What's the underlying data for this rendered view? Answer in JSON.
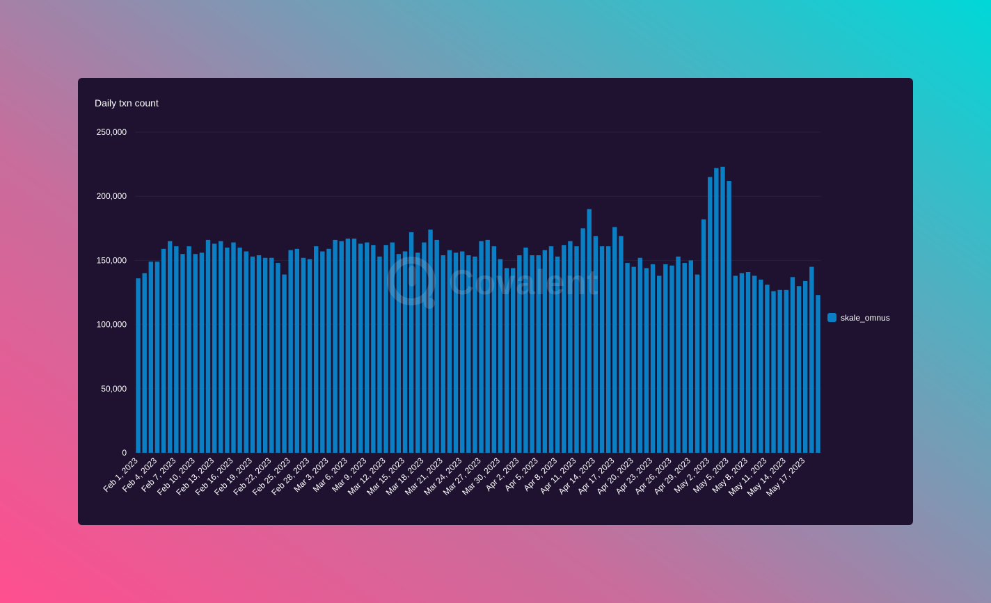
{
  "colors": {
    "bar": "#0a7fc4",
    "card_bg": "#1e1230",
    "text": "#ffffff",
    "grid": "#2a1f3c"
  },
  "watermark": {
    "text": "Covalent",
    "icon": "covalent-logo-icon"
  },
  "chart_data": {
    "type": "bar",
    "title": "Daily txn count",
    "xlabel": "",
    "ylabel": "",
    "ylim": [
      0,
      250000
    ],
    "yticks": [
      0,
      50000,
      100000,
      150000,
      200000,
      250000
    ],
    "ytick_labels": [
      "0",
      "50,000",
      "100,000",
      "150,000",
      "200,000",
      "250,000"
    ],
    "legend_position": "right",
    "grid": false,
    "categories": [
      "Feb 1, 2023",
      "Feb 2, 2023",
      "Feb 3, 2023",
      "Feb 4, 2023",
      "Feb 5, 2023",
      "Feb 6, 2023",
      "Feb 7, 2023",
      "Feb 8, 2023",
      "Feb 9, 2023",
      "Feb 10, 2023",
      "Feb 11, 2023",
      "Feb 12, 2023",
      "Feb 13, 2023",
      "Feb 14, 2023",
      "Feb 15, 2023",
      "Feb 16, 2023",
      "Feb 17, 2023",
      "Feb 18, 2023",
      "Feb 19, 2023",
      "Feb 20, 2023",
      "Feb 21, 2023",
      "Feb 22, 2023",
      "Feb 23, 2023",
      "Feb 24, 2023",
      "Feb 25, 2023",
      "Feb 26, 2023",
      "Feb 27, 2023",
      "Feb 28, 2023",
      "Mar 1, 2023",
      "Mar 2, 2023",
      "Mar 3, 2023",
      "Mar 4, 2023",
      "Mar 5, 2023",
      "Mar 6, 2023",
      "Mar 7, 2023",
      "Mar 8, 2023",
      "Mar 9, 2023",
      "Mar 10, 2023",
      "Mar 11, 2023",
      "Mar 12, 2023",
      "Mar 13, 2023",
      "Mar 14, 2023",
      "Mar 15, 2023",
      "Mar 16, 2023",
      "Mar 17, 2023",
      "Mar 18, 2023",
      "Mar 19, 2023",
      "Mar 20, 2023",
      "Mar 21, 2023",
      "Mar 22, 2023",
      "Mar 23, 2023",
      "Mar 24, 2023",
      "Mar 25, 2023",
      "Mar 26, 2023",
      "Mar 27, 2023",
      "Mar 28, 2023",
      "Mar 29, 2023",
      "Mar 30, 2023",
      "Mar 31, 2023",
      "Apr 1, 2023",
      "Apr 2, 2023",
      "Apr 3, 2023",
      "Apr 4, 2023",
      "Apr 5, 2023",
      "Apr 6, 2023",
      "Apr 7, 2023",
      "Apr 8, 2023",
      "Apr 9, 2023",
      "Apr 10, 2023",
      "Apr 11, 2023",
      "Apr 12, 2023",
      "Apr 13, 2023",
      "Apr 14, 2023",
      "Apr 15, 2023",
      "Apr 16, 2023",
      "Apr 17, 2023",
      "Apr 18, 2023",
      "Apr 19, 2023",
      "Apr 20, 2023",
      "Apr 21, 2023",
      "Apr 22, 2023",
      "Apr 23, 2023",
      "Apr 24, 2023",
      "Apr 25, 2023",
      "Apr 26, 2023",
      "Apr 27, 2023",
      "Apr 28, 2023",
      "Apr 29, 2023",
      "Apr 30, 2023",
      "May 1, 2023",
      "May 2, 2023",
      "May 3, 2023",
      "May 4, 2023",
      "May 5, 2023",
      "May 6, 2023",
      "May 7, 2023",
      "May 8, 2023",
      "May 9, 2023",
      "May 10, 2023",
      "May 11, 2023",
      "May 12, 2023",
      "May 13, 2023",
      "May 14, 2023",
      "May 15, 2023",
      "May 16, 2023",
      "May 17, 2023",
      "May 18, 2023",
      "May 19, 2023"
    ],
    "xtick_labels": [
      "Feb 1, 2023",
      "Feb 4, 2023",
      "Feb 7, 2023",
      "Feb 10, 2023",
      "Feb 13, 2023",
      "Feb 16, 2023",
      "Feb 19, 2023",
      "Feb 22, 2023",
      "Feb 25, 2023",
      "Feb 28, 2023",
      "Mar 3, 2023",
      "Mar 6, 2023",
      "Mar 9, 2023",
      "Mar 12, 2023",
      "Mar 15, 2023",
      "Mar 18, 2023",
      "Mar 21, 2023",
      "Mar 24, 2023",
      "Mar 27, 2023",
      "Mar 30, 2023",
      "Apr 2, 2023",
      "Apr 5, 2023",
      "Apr 8, 2023",
      "Apr 11, 2023",
      "Apr 14, 2023",
      "Apr 17, 2023",
      "Apr 20, 2023",
      "Apr 23, 2023",
      "Apr 26, 2023",
      "Apr 29, 2023",
      "May 2, 2023",
      "May 5, 2023",
      "May 8, 2023",
      "May 11, 2023",
      "May 14, 2023",
      "May 17, 2023"
    ],
    "series": [
      {
        "name": "skale_omnus",
        "values": [
          136000,
          140000,
          149000,
          149000,
          159000,
          165000,
          161000,
          155000,
          161000,
          155000,
          156000,
          166000,
          163000,
          165000,
          160000,
          164000,
          160000,
          157000,
          153000,
          154000,
          152000,
          152000,
          148000,
          139000,
          158000,
          159000,
          152000,
          151000,
          161000,
          157000,
          159000,
          166000,
          165000,
          167000,
          167000,
          163000,
          164000,
          162000,
          153000,
          162000,
          164000,
          155000,
          157000,
          172000,
          156000,
          164000,
          174000,
          166000,
          154000,
          158000,
          156000,
          157000,
          154000,
          153000,
          165000,
          166000,
          161000,
          151000,
          144000,
          144000,
          154000,
          160000,
          154000,
          154000,
          158000,
          161000,
          153000,
          162000,
          165000,
          161000,
          175000,
          190000,
          169000,
          161000,
          161000,
          176000,
          169000,
          148000,
          145000,
          152000,
          144000,
          147000,
          138000,
          147000,
          146000,
          153000,
          148000,
          150000,
          139000,
          182000,
          215000,
          222000,
          223000,
          212000,
          138000,
          140000,
          141000,
          138000,
          135000,
          131000,
          126000,
          127000,
          127000,
          137000,
          130000,
          134000,
          145000,
          123000
        ]
      }
    ]
  }
}
